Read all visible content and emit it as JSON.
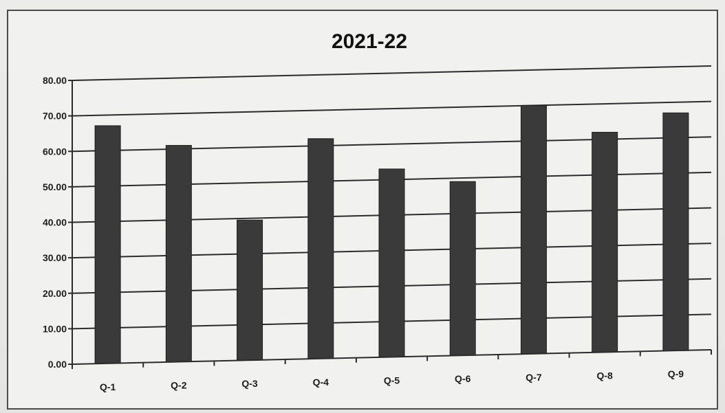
{
  "chart_data": {
    "type": "bar",
    "title": "2021-22",
    "xlabel": "",
    "ylabel": "",
    "categories": [
      "Q-1",
      "Q-2",
      "Q-3",
      "Q-4",
      "Q-5",
      "Q-6",
      "Q-7",
      "Q-8",
      "Q-9"
    ],
    "values": [
      67,
      61,
      39.5,
      62,
      53,
      49,
      70,
      62,
      67
    ],
    "ylim": [
      0,
      80
    ],
    "yticks": [
      "0.00",
      "10.00",
      "20.00",
      "30.00",
      "40.00",
      "50.00",
      "60.00",
      "70.00",
      "80.00"
    ],
    "grid": true,
    "legend": "none",
    "bar_color": "#3a3a3a"
  }
}
